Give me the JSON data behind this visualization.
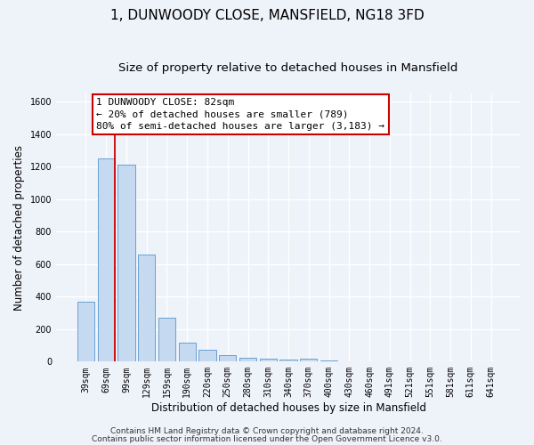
{
  "title": "1, DUNWOODY CLOSE, MANSFIELD, NG18 3FD",
  "subtitle": "Size of property relative to detached houses in Mansfield",
  "xlabel": "Distribution of detached houses by size in Mansfield",
  "ylabel": "Number of detached properties",
  "bar_labels": [
    "39sqm",
    "69sqm",
    "99sqm",
    "129sqm",
    "159sqm",
    "190sqm",
    "220sqm",
    "250sqm",
    "280sqm",
    "310sqm",
    "340sqm",
    "370sqm",
    "400sqm",
    "430sqm",
    "460sqm",
    "491sqm",
    "521sqm",
    "551sqm",
    "581sqm",
    "611sqm",
    "641sqm"
  ],
  "bar_values": [
    370,
    1250,
    1210,
    660,
    270,
    115,
    75,
    38,
    22,
    20,
    15,
    20,
    5,
    0,
    0,
    0,
    0,
    0,
    0,
    0,
    0
  ],
  "bar_color": "#c5d9f0",
  "bar_edge_color": "#6aa0d0",
  "vline_x_idx": 1.42,
  "vline_color": "#cc0000",
  "annotation_line1": "1 DUNWOODY CLOSE: 82sqm",
  "annotation_line2": "← 20% of detached houses are smaller (789)",
  "annotation_line3": "80% of semi-detached houses are larger (3,183) →",
  "ylim": [
    0,
    1650
  ],
  "yticks": [
    0,
    200,
    400,
    600,
    800,
    1000,
    1200,
    1400,
    1600
  ],
  "footer_line1": "Contains HM Land Registry data © Crown copyright and database right 2024.",
  "footer_line2": "Contains public sector information licensed under the Open Government Licence v3.0.",
  "bg_color": "#eef2f9",
  "plot_bg_color": "#eef2f9",
  "grid_color": "#ffffff",
  "title_fontsize": 11,
  "subtitle_fontsize": 9.5,
  "label_fontsize": 8.5,
  "tick_fontsize": 7,
  "annot_fontsize": 8,
  "footer_fontsize": 6.5
}
